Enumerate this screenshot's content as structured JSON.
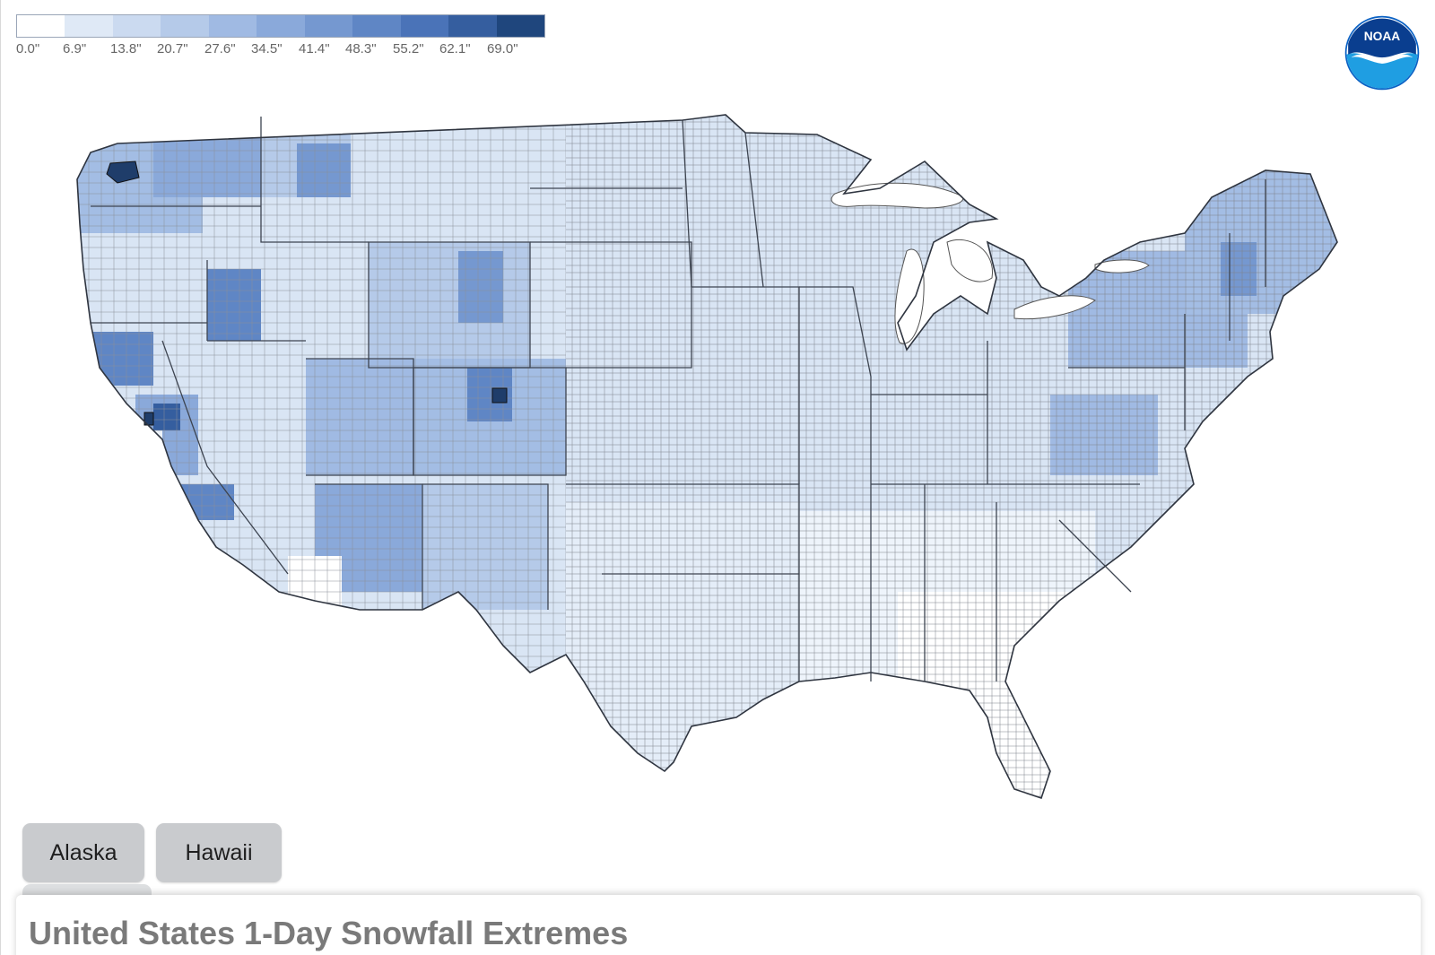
{
  "legend": {
    "labels": [
      "0.0\"",
      "6.9\"",
      "13.8\"",
      "20.7\"",
      "27.6\"",
      "34.5\"",
      "41.4\"",
      "48.3\"",
      "55.2\"",
      "62.1\"",
      "69.0\""
    ],
    "colors": [
      "#ffffff",
      "#dfe9f6",
      "#cbdaf0",
      "#b5cae9",
      "#a0bae3",
      "#8aa9da",
      "#7598d0",
      "#5f86c5",
      "#4a73b8",
      "#355e9f",
      "#1f467d"
    ]
  },
  "logo": {
    "text": "NOAA",
    "icon": "noaa-logo-icon",
    "colors": {
      "ring": "#0a61c4",
      "sky": "#1f9ee2",
      "bird": "#ffffff"
    }
  },
  "map": {
    "region": "contiguous-united-states",
    "base_fill": "#d9e5f4",
    "highlight_fills": {
      "low": "#eef4fb",
      "mid": "#a3bde4",
      "high": "#5f86c5",
      "extreme": "#1f3d6a"
    },
    "border_color": "#555555",
    "water_color": "#ffffff"
  },
  "buttons": {
    "alaska": "Alaska",
    "hawaii": "Hawaii"
  },
  "title": "United States 1-Day Snowfall Extremes"
}
